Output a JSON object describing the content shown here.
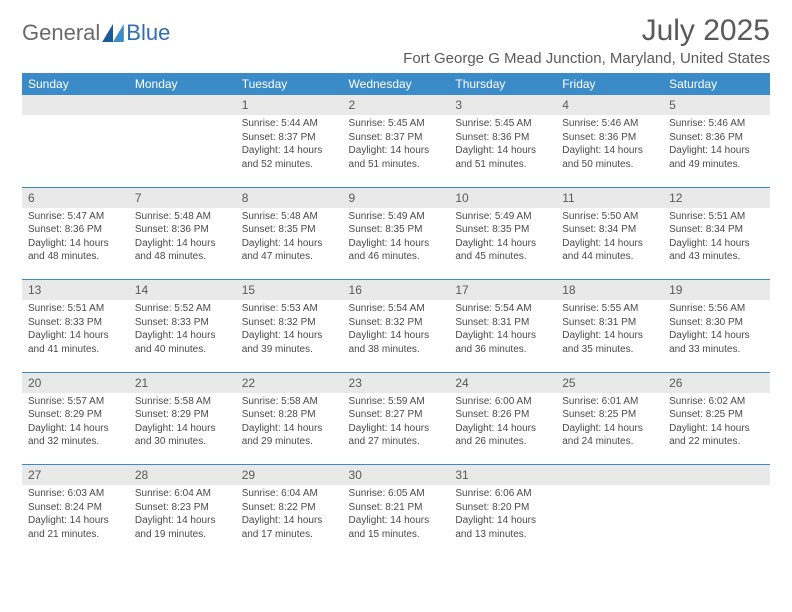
{
  "brand": {
    "general": "General",
    "blue": "Blue"
  },
  "title": {
    "month": "July 2025",
    "location": "Fort George G Mead Junction, Maryland, United States"
  },
  "colors": {
    "headerBg": "#3b8bc8",
    "headerText": "#ffffff",
    "dayNumBg": "#e9e9e9",
    "bodyBg": "#ffffff",
    "textMuted": "#5a5a5a"
  },
  "dayNames": [
    "Sunday",
    "Monday",
    "Tuesday",
    "Wednesday",
    "Thursday",
    "Friday",
    "Saturday"
  ],
  "weeks": [
    [
      {
        "num": "",
        "sunrise": "",
        "sunset": "",
        "daylight": ""
      },
      {
        "num": "",
        "sunrise": "",
        "sunset": "",
        "daylight": ""
      },
      {
        "num": "1",
        "sunrise": "Sunrise: 5:44 AM",
        "sunset": "Sunset: 8:37 PM",
        "daylight": "Daylight: 14 hours and 52 minutes."
      },
      {
        "num": "2",
        "sunrise": "Sunrise: 5:45 AM",
        "sunset": "Sunset: 8:37 PM",
        "daylight": "Daylight: 14 hours and 51 minutes."
      },
      {
        "num": "3",
        "sunrise": "Sunrise: 5:45 AM",
        "sunset": "Sunset: 8:36 PM",
        "daylight": "Daylight: 14 hours and 51 minutes."
      },
      {
        "num": "4",
        "sunrise": "Sunrise: 5:46 AM",
        "sunset": "Sunset: 8:36 PM",
        "daylight": "Daylight: 14 hours and 50 minutes."
      },
      {
        "num": "5",
        "sunrise": "Sunrise: 5:46 AM",
        "sunset": "Sunset: 8:36 PM",
        "daylight": "Daylight: 14 hours and 49 minutes."
      }
    ],
    [
      {
        "num": "6",
        "sunrise": "Sunrise: 5:47 AM",
        "sunset": "Sunset: 8:36 PM",
        "daylight": "Daylight: 14 hours and 48 minutes."
      },
      {
        "num": "7",
        "sunrise": "Sunrise: 5:48 AM",
        "sunset": "Sunset: 8:36 PM",
        "daylight": "Daylight: 14 hours and 48 minutes."
      },
      {
        "num": "8",
        "sunrise": "Sunrise: 5:48 AM",
        "sunset": "Sunset: 8:35 PM",
        "daylight": "Daylight: 14 hours and 47 minutes."
      },
      {
        "num": "9",
        "sunrise": "Sunrise: 5:49 AM",
        "sunset": "Sunset: 8:35 PM",
        "daylight": "Daylight: 14 hours and 46 minutes."
      },
      {
        "num": "10",
        "sunrise": "Sunrise: 5:49 AM",
        "sunset": "Sunset: 8:35 PM",
        "daylight": "Daylight: 14 hours and 45 minutes."
      },
      {
        "num": "11",
        "sunrise": "Sunrise: 5:50 AM",
        "sunset": "Sunset: 8:34 PM",
        "daylight": "Daylight: 14 hours and 44 minutes."
      },
      {
        "num": "12",
        "sunrise": "Sunrise: 5:51 AM",
        "sunset": "Sunset: 8:34 PM",
        "daylight": "Daylight: 14 hours and 43 minutes."
      }
    ],
    [
      {
        "num": "13",
        "sunrise": "Sunrise: 5:51 AM",
        "sunset": "Sunset: 8:33 PM",
        "daylight": "Daylight: 14 hours and 41 minutes."
      },
      {
        "num": "14",
        "sunrise": "Sunrise: 5:52 AM",
        "sunset": "Sunset: 8:33 PM",
        "daylight": "Daylight: 14 hours and 40 minutes."
      },
      {
        "num": "15",
        "sunrise": "Sunrise: 5:53 AM",
        "sunset": "Sunset: 8:32 PM",
        "daylight": "Daylight: 14 hours and 39 minutes."
      },
      {
        "num": "16",
        "sunrise": "Sunrise: 5:54 AM",
        "sunset": "Sunset: 8:32 PM",
        "daylight": "Daylight: 14 hours and 38 minutes."
      },
      {
        "num": "17",
        "sunrise": "Sunrise: 5:54 AM",
        "sunset": "Sunset: 8:31 PM",
        "daylight": "Daylight: 14 hours and 36 minutes."
      },
      {
        "num": "18",
        "sunrise": "Sunrise: 5:55 AM",
        "sunset": "Sunset: 8:31 PM",
        "daylight": "Daylight: 14 hours and 35 minutes."
      },
      {
        "num": "19",
        "sunrise": "Sunrise: 5:56 AM",
        "sunset": "Sunset: 8:30 PM",
        "daylight": "Daylight: 14 hours and 33 minutes."
      }
    ],
    [
      {
        "num": "20",
        "sunrise": "Sunrise: 5:57 AM",
        "sunset": "Sunset: 8:29 PM",
        "daylight": "Daylight: 14 hours and 32 minutes."
      },
      {
        "num": "21",
        "sunrise": "Sunrise: 5:58 AM",
        "sunset": "Sunset: 8:29 PM",
        "daylight": "Daylight: 14 hours and 30 minutes."
      },
      {
        "num": "22",
        "sunrise": "Sunrise: 5:58 AM",
        "sunset": "Sunset: 8:28 PM",
        "daylight": "Daylight: 14 hours and 29 minutes."
      },
      {
        "num": "23",
        "sunrise": "Sunrise: 5:59 AM",
        "sunset": "Sunset: 8:27 PM",
        "daylight": "Daylight: 14 hours and 27 minutes."
      },
      {
        "num": "24",
        "sunrise": "Sunrise: 6:00 AM",
        "sunset": "Sunset: 8:26 PM",
        "daylight": "Daylight: 14 hours and 26 minutes."
      },
      {
        "num": "25",
        "sunrise": "Sunrise: 6:01 AM",
        "sunset": "Sunset: 8:25 PM",
        "daylight": "Daylight: 14 hours and 24 minutes."
      },
      {
        "num": "26",
        "sunrise": "Sunrise: 6:02 AM",
        "sunset": "Sunset: 8:25 PM",
        "daylight": "Daylight: 14 hours and 22 minutes."
      }
    ],
    [
      {
        "num": "27",
        "sunrise": "Sunrise: 6:03 AM",
        "sunset": "Sunset: 8:24 PM",
        "daylight": "Daylight: 14 hours and 21 minutes."
      },
      {
        "num": "28",
        "sunrise": "Sunrise: 6:04 AM",
        "sunset": "Sunset: 8:23 PM",
        "daylight": "Daylight: 14 hours and 19 minutes."
      },
      {
        "num": "29",
        "sunrise": "Sunrise: 6:04 AM",
        "sunset": "Sunset: 8:22 PM",
        "daylight": "Daylight: 14 hours and 17 minutes."
      },
      {
        "num": "30",
        "sunrise": "Sunrise: 6:05 AM",
        "sunset": "Sunset: 8:21 PM",
        "daylight": "Daylight: 14 hours and 15 minutes."
      },
      {
        "num": "31",
        "sunrise": "Sunrise: 6:06 AM",
        "sunset": "Sunset: 8:20 PM",
        "daylight": "Daylight: 14 hours and 13 minutes."
      },
      {
        "num": "",
        "sunrise": "",
        "sunset": "",
        "daylight": ""
      },
      {
        "num": "",
        "sunrise": "",
        "sunset": "",
        "daylight": ""
      }
    ]
  ]
}
